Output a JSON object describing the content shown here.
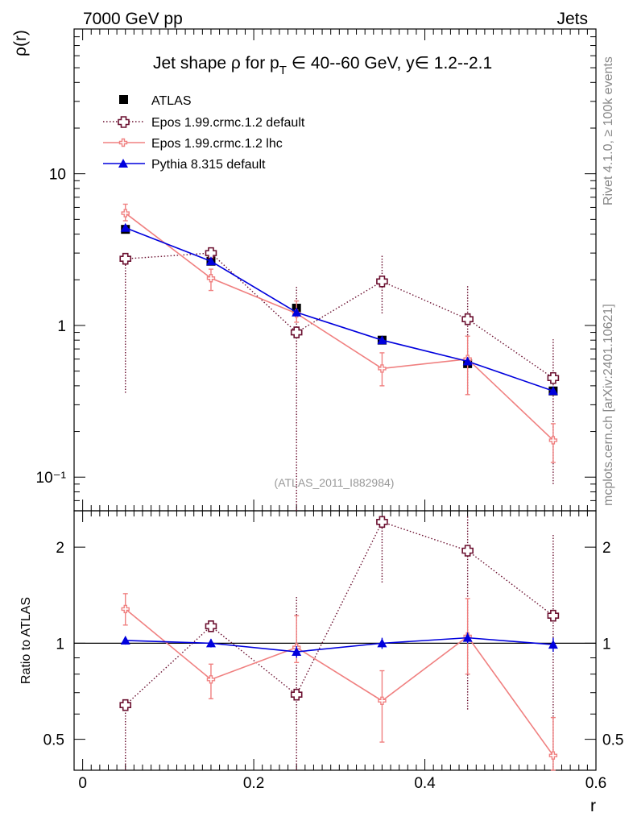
{
  "header": {
    "left_label": "7000 GeV pp",
    "right_label": "Jets"
  },
  "side_labels": {
    "rivet": "Rivet 4.1.0, ≥ 100k events",
    "mcplots": "mcplots.cern.ch [arXiv:2401.10621]"
  },
  "colors": {
    "atlas": "#000000",
    "epos_default": "#6b1030",
    "epos_lhc": "#f08080",
    "pythia": "#0000dd",
    "watermark": "#999999"
  },
  "chart_data": [
    {
      "type": "scatter",
      "panel": "main",
      "title": "Jet shape ρ for p_T ∈ 40--60 GeV, y ∈ 1.2--2.1",
      "title_parts": {
        "prefix": "Jet shape ρ for p",
        "sub": "T",
        "suffix": " ∈ 40--60 GeV, y∈ 1.2--2.1"
      },
      "ylabel": "ρ(r)",
      "xlabel": "",
      "yscale": "log",
      "ylim": [
        0.06,
        90
      ],
      "xlim": [
        -0.01,
        0.6
      ],
      "watermark": "(ATLAS_2011_I882984)",
      "yticks": [
        {
          "value": 10,
          "label": "10"
        },
        {
          "value": 1,
          "label": "1"
        },
        {
          "value": 0.1,
          "label": "10⁻¹"
        }
      ],
      "x": [
        0.05,
        0.15,
        0.25,
        0.35,
        0.45,
        0.55
      ],
      "series": [
        {
          "name": "ATLAS",
          "key": "atlas",
          "marker": "square",
          "line": "none",
          "values": [
            4.3,
            2.65,
            1.3,
            0.8,
            0.56,
            0.37
          ],
          "err_low": [
            0.1,
            0.06,
            0.04,
            0.03,
            0.02,
            0.02
          ],
          "err_high": [
            0.1,
            0.06,
            0.04,
            0.03,
            0.02,
            0.02
          ]
        },
        {
          "name": "Epos 1.99.crmc.1.2 default",
          "key": "epos_default",
          "marker": "open-cross",
          "line": "dotted",
          "values": [
            2.75,
            3.0,
            0.9,
            1.95,
            1.1,
            0.45
          ],
          "err_low": [
            2.39,
            0.05,
            0.85,
            0.75,
            0.75,
            0.36
          ],
          "err_high": [
            0.05,
            0.05,
            0.9,
            1.0,
            0.75,
            0.36
          ]
        },
        {
          "name": "Epos 1.99.crmc.1.2 lhc",
          "key": "epos_lhc",
          "marker": "small-cross",
          "line": "solid",
          "values": [
            5.5,
            2.05,
            1.2,
            0.52,
            0.6,
            0.175
          ],
          "err_low": [
            0.6,
            0.35,
            0.15,
            0.12,
            0.25,
            0.05
          ],
          "err_high": [
            0.8,
            0.3,
            0.25,
            0.14,
            0.25,
            0.05
          ]
        },
        {
          "name": "Pythia 8.315 default",
          "key": "pythia",
          "marker": "triangle",
          "line": "solid",
          "values": [
            4.4,
            2.65,
            1.22,
            0.8,
            0.58,
            0.37
          ],
          "err_low": [
            0.1,
            0.08,
            0.05,
            0.03,
            0.03,
            0.02
          ],
          "err_high": [
            0.1,
            0.08,
            0.05,
            0.03,
            0.03,
            0.02
          ]
        }
      ]
    },
    {
      "type": "scatter",
      "panel": "ratio",
      "ylabel": "Ratio to ATLAS",
      "xlabel": "r",
      "yscale": "log",
      "ylim": [
        0.4,
        2.6
      ],
      "xlim": [
        -0.01,
        0.6
      ],
      "yticks": [
        {
          "value": 2,
          "label": "2"
        },
        {
          "value": 1,
          "label": "1"
        },
        {
          "value": 0.5,
          "label": "0.5"
        }
      ],
      "xticks": [
        {
          "value": 0,
          "label": "0"
        },
        {
          "value": 0.2,
          "label": "0.2"
        },
        {
          "value": 0.4,
          "label": "0.4"
        },
        {
          "value": 0.6,
          "label": "0.6"
        }
      ],
      "reference": 1,
      "x": [
        0.05,
        0.15,
        0.25,
        0.35,
        0.45,
        0.55
      ],
      "series": [
        {
          "name": "Epos 1.99.crmc.1.2 default",
          "key": "epos_default",
          "marker": "open-cross",
          "line": "dotted",
          "values": [
            0.64,
            1.13,
            0.69,
            2.4,
            1.95,
            1.22
          ],
          "err_low": [
            0.3,
            0.02,
            0.35,
            0.85,
            1.33,
            0.85
          ],
          "err_high": [
            0.02,
            0.02,
            0.72,
            0.02,
            0.55,
            0.98
          ]
        },
        {
          "name": "Epos 1.99.crmc.1.2 lhc",
          "key": "epos_lhc",
          "marker": "small-cross",
          "line": "solid",
          "values": [
            1.28,
            0.77,
            0.97,
            0.66,
            1.05,
            0.445
          ],
          "err_low": [
            0.14,
            0.1,
            0.1,
            0.17,
            0.25,
            0.13
          ],
          "err_high": [
            0.15,
            0.09,
            0.25,
            0.16,
            0.33,
            0.14
          ]
        },
        {
          "name": "Pythia 8.315 default",
          "key": "pythia",
          "marker": "triangle",
          "line": "solid",
          "values": [
            1.02,
            1.0,
            0.94,
            1.0,
            1.04,
            0.99
          ],
          "err_low": [
            0.03,
            0.03,
            0.04,
            0.04,
            0.04,
            0.05
          ],
          "err_high": [
            0.03,
            0.03,
            0.04,
            0.04,
            0.04,
            0.05
          ]
        }
      ]
    }
  ]
}
